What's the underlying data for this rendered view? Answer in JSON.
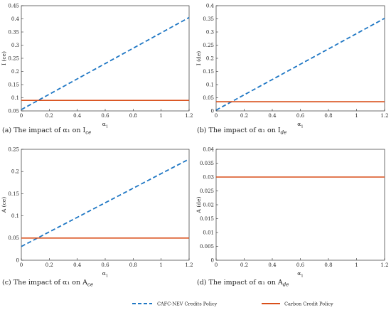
{
  "chart_data": [
    {
      "id": "a",
      "type": "line",
      "caption": "(a)  The impact of α₁ on I",
      "caption_sub": "ce",
      "xlabel": "α",
      "xlabel_sub": "1",
      "ylabel": "I (ce)",
      "xlim": [
        0,
        1.2
      ],
      "ylim": [
        0.05,
        0.45
      ],
      "xticks": [
        "0",
        "0.2",
        "0.4",
        "0.6",
        "0.8",
        "1",
        "1.2"
      ],
      "yticks": [
        "0.05",
        "0.1",
        "0.15",
        "0.2",
        "0.25",
        "0.3",
        "0.35",
        "0.4",
        "0.45"
      ],
      "series": [
        {
          "name": "CAFC-NEV Credits Policy",
          "x": [
            0,
            1.2
          ],
          "y": [
            0.055,
            0.405
          ]
        },
        {
          "name": "Carbon Credit Policy",
          "x": [
            0,
            1.2
          ],
          "y": [
            0.09,
            0.09
          ]
        }
      ]
    },
    {
      "id": "b",
      "type": "line",
      "caption": "(b)  The impact of α₁ on I",
      "caption_sub": "de",
      "xlabel": "α",
      "xlabel_sub": "1",
      "ylabel": "I (de)",
      "xlim": [
        0,
        1.2
      ],
      "ylim": [
        0,
        0.4
      ],
      "xticks": [
        "0",
        "0.2",
        "0.4",
        "0.6",
        "0.8",
        "1",
        "1.2"
      ],
      "yticks": [
        "0",
        "0.05",
        "0.1",
        "0.15",
        "0.2",
        "0.25",
        "0.3",
        "0.35",
        "0.4"
      ],
      "series": [
        {
          "name": "CAFC-NEV Credits Policy",
          "x": [
            0,
            1.2
          ],
          "y": [
            0.003,
            0.352
          ]
        },
        {
          "name": "Carbon Credit Policy",
          "x": [
            0,
            1.2
          ],
          "y": [
            0.035,
            0.035
          ]
        }
      ]
    },
    {
      "id": "c",
      "type": "line",
      "caption": "(c)  The impact of α₁ on A",
      "caption_sub": "ce",
      "xlabel": "α",
      "xlabel_sub": "1",
      "ylabel": "A (ce)",
      "xlim": [
        0,
        1.2
      ],
      "ylim": [
        0,
        0.25
      ],
      "xticks": [
        "0",
        "0.2",
        "0.4",
        "0.6",
        "0.8",
        "1",
        "1.2"
      ],
      "yticks": [
        "0",
        "0.05",
        "0.1",
        "0.15",
        "0.2",
        "0.25"
      ],
      "series": [
        {
          "name": "CAFC-NEV Credits Policy",
          "x": [
            0,
            1.2
          ],
          "y": [
            0.031,
            0.228
          ]
        },
        {
          "name": "Carbon Credit Policy",
          "x": [
            0,
            1.2
          ],
          "y": [
            0.05,
            0.05
          ]
        }
      ]
    },
    {
      "id": "d",
      "type": "line",
      "caption": "(d)  The impact of α₁ on A",
      "caption_sub": "de",
      "xlabel": "α",
      "xlabel_sub": "1",
      "ylabel": "A (de)",
      "xlim": [
        0,
        1.2
      ],
      "ylim": [
        0,
        0.04
      ],
      "xticks": [
        "0",
        "0.2",
        "0.4",
        "0.6",
        "0.8",
        "1",
        "1.2"
      ],
      "yticks": [
        "0",
        "0.005",
        "0.01",
        "0.015",
        "0.02",
        "0.025",
        "0.03",
        "0.035",
        "0.04"
      ],
      "series": [
        {
          "name": "Carbon Credit Policy",
          "x": [
            0,
            1.2
          ],
          "y": [
            0.03,
            0.03
          ]
        }
      ]
    }
  ],
  "legend": {
    "position": "bottom-center",
    "entries": [
      {
        "label": "CAFC-NEV Credits Policy",
        "color": "#1f77c4",
        "style": "dashed"
      },
      {
        "label": "Carbon Credit Policy",
        "color": "#d94f1a",
        "style": "solid"
      }
    ]
  },
  "colors": {
    "CAFC-NEV Credits Policy": "#1f77c4",
    "Carbon Credit Policy": "#d94f1a"
  }
}
